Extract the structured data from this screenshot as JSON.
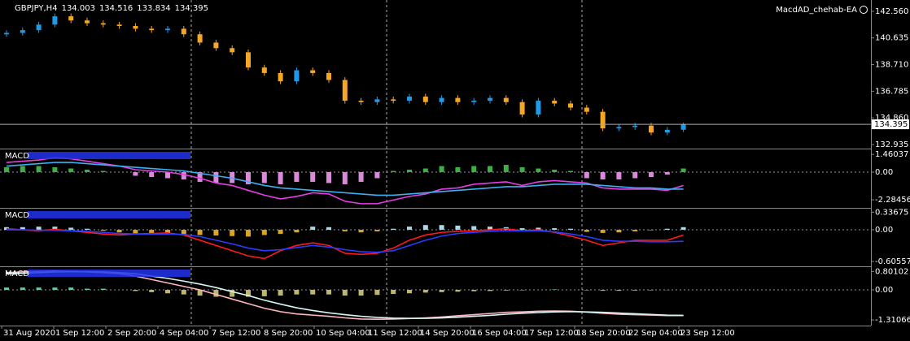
{
  "chart_data": [
    {
      "type": "candlestick",
      "title": "GBPJPY,H4",
      "expert": "MacdAD_chehab-EA",
      "up_color": "#1e9be8",
      "down_color": "#f5a623",
      "ylim": [
        132.7,
        143.26
      ],
      "yticks": [
        {
          "value": 142.56,
          "label": "142.560"
        },
        140.635,
        {
          "value": 138.71,
          "label": "138.710"
        },
        136.785,
        {
          "value": 134.86,
          "label": "134.860"
        },
        132.935
      ],
      "open": [
        140.9,
        141.0,
        141.2,
        141.6,
        142.2,
        141.9,
        141.7,
        141.6,
        141.5,
        141.3,
        141.2,
        141.3,
        140.9,
        140.3,
        139.9,
        139.6,
        138.5,
        138.1,
        137.5,
        138.3,
        138.1,
        137.6,
        136.1,
        136.0,
        136.2,
        136.1,
        136.4,
        136.0,
        136.3,
        136.0,
        136.1,
        136.3,
        136.0,
        135.1,
        136.1,
        135.9,
        135.6,
        135.3,
        134.1,
        134.2,
        134.3,
        133.8,
        134.003
      ],
      "high": [
        141.2,
        141.4,
        141.8,
        142.4,
        142.4,
        142.1,
        141.9,
        141.8,
        141.7,
        141.5,
        141.5,
        141.5,
        141.1,
        140.5,
        140.1,
        139.8,
        138.7,
        138.3,
        138.5,
        138.5,
        138.3,
        137.8,
        136.3,
        136.4,
        136.4,
        136.6,
        136.6,
        136.5,
        136.5,
        136.3,
        136.5,
        136.5,
        136.2,
        136.3,
        136.3,
        136.1,
        135.8,
        135.5,
        134.4,
        134.5,
        134.5,
        134.2,
        134.516
      ],
      "low": [
        140.7,
        140.8,
        141.0,
        141.4,
        141.7,
        141.5,
        141.4,
        141.3,
        141.1,
        141.0,
        141.0,
        140.7,
        140.1,
        139.7,
        139.4,
        138.3,
        137.9,
        137.3,
        137.3,
        137.9,
        137.4,
        135.9,
        135.8,
        135.8,
        135.9,
        135.9,
        135.8,
        135.8,
        135.8,
        135.8,
        135.9,
        135.8,
        134.9,
        134.9,
        135.7,
        135.4,
        135.1,
        133.9,
        133.9,
        134.0,
        133.6,
        133.6,
        133.834
      ],
      "close": [
        141.0,
        141.2,
        141.6,
        142.2,
        141.9,
        141.7,
        141.6,
        141.5,
        141.3,
        141.2,
        141.3,
        140.9,
        140.3,
        139.9,
        139.6,
        138.5,
        138.1,
        137.5,
        138.3,
        138.1,
        137.6,
        136.1,
        136.0,
        136.2,
        136.1,
        136.4,
        136.0,
        136.3,
        136.0,
        136.1,
        136.3,
        136.0,
        135.1,
        136.1,
        135.9,
        135.6,
        135.3,
        134.1,
        134.2,
        134.3,
        133.8,
        134.0,
        134.395
      ],
      "time_labels": [
        "31 Aug 2020",
        "1 Sep 12:00",
        "2 Sep 20:00",
        "4 Sep 04:00",
        "7 Sep 12:00",
        "8 Sep 20:00",
        "10 Sep 04:00",
        "11 Sep 12:00",
        "14 Sep 20:00",
        "16 Sep 04:00",
        "17 Sep 12:00",
        "18 Sep 20:00",
        "22 Sep 04:00",
        "23 Sep 12:00"
      ]
    },
    {
      "type": "macd",
      "title": "MACD",
      "ylim": [
        -2.876,
        1.873
      ],
      "yticks": [
        1.46037,
        {
          "value": 0,
          "label": "0.00"
        },
        -2.28456
      ],
      "histogram": {
        "positive_color": "#3cb043",
        "negative_color": "#d98ad9",
        "values": [
          0.4,
          0.5,
          0.5,
          0.4,
          0.3,
          0.2,
          0.1,
          0,
          -0.3,
          -0.4,
          -0.5,
          -0.6,
          -0.8,
          -0.9,
          -0.9,
          -1.0,
          -0.9,
          -1.0,
          -0.8,
          -0.8,
          -0.9,
          -1.0,
          -0.8,
          -0.5,
          0.1,
          0.2,
          0.3,
          0.5,
          0.4,
          0.5,
          0.5,
          0.6,
          0.4,
          0.3,
          0.2,
          0.1,
          -0.5,
          -0.6,
          -0.6,
          -0.5,
          -0.4,
          -0.2,
          0.3
        ]
      },
      "series": [
        {
          "color": "#e43ee4",
          "values": [
            0.8,
            0.9,
            1.0,
            1.2,
            1.1,
            0.9,
            0.7,
            0.5,
            0.2,
            0.1,
            0,
            -0.2,
            -0.5,
            -0.9,
            -1.1,
            -1.5,
            -1.9,
            -2.2,
            -2.0,
            -1.7,
            -1.8,
            -2.4,
            -2.6,
            -2.6,
            -2.3,
            -2.0,
            -1.8,
            -1.4,
            -1.3,
            -1.0,
            -0.9,
            -0.8,
            -1.1,
            -0.8,
            -0.7,
            -0.8,
            -0.9,
            -1.3,
            -1.4,
            -1.4,
            -1.4,
            -1.5,
            -1.1
          ]
        },
        {
          "color": "#3bb0f0",
          "values": [
            0.5,
            0.6,
            0.7,
            0.8,
            0.8,
            0.7,
            0.6,
            0.5,
            0.4,
            0.3,
            0.2,
            0.1,
            -0.1,
            -0.3,
            -0.5,
            -0.8,
            -1.1,
            -1.3,
            -1.4,
            -1.5,
            -1.6,
            -1.7,
            -1.8,
            -1.9,
            -1.9,
            -1.8,
            -1.7,
            -1.6,
            -1.5,
            -1.4,
            -1.3,
            -1.2,
            -1.2,
            -1.1,
            -1.0,
            -1.0,
            -1.0,
            -1.1,
            -1.2,
            -1.3,
            -1.3,
            -1.4,
            -1.4
          ]
        }
      ]
    },
    {
      "type": "macd",
      "title": "MACD",
      "ylim": [
        -0.683,
        0.404
      ],
      "yticks": [
        0.33675,
        {
          "value": 0,
          "label": "0.00"
        },
        -0.60557
      ],
      "histogram": {
        "positive_color": "#add8e6",
        "negative_color": "#daa520",
        "values": [
          0.05,
          0.05,
          0.06,
          0.06,
          0.04,
          0.02,
          -0.02,
          -0.05,
          -0.08,
          -0.08,
          -0.07,
          -0.09,
          -0.1,
          -0.11,
          -0.12,
          -0.13,
          -0.1,
          -0.08,
          -0.05,
          0.06,
          0.05,
          -0.03,
          -0.05,
          -0.03,
          0.02,
          0.06,
          0.09,
          0.09,
          0.08,
          0.07,
          0.06,
          0.05,
          0.03,
          0.04,
          0.03,
          0.02,
          -0.04,
          -0.06,
          -0.05,
          -0.03,
          -0.01,
          0.02,
          0.05
        ]
      },
      "series": [
        {
          "color": "#ff1a1a",
          "values": [
            0.02,
            0.0,
            -0.02,
            0.01,
            -0.02,
            -0.05,
            -0.08,
            -0.1,
            -0.08,
            -0.07,
            -0.06,
            -0.1,
            -0.2,
            -0.3,
            -0.4,
            -0.5,
            -0.55,
            -0.4,
            -0.3,
            -0.25,
            -0.3,
            -0.45,
            -0.47,
            -0.45,
            -0.35,
            -0.2,
            -0.1,
            -0.05,
            -0.03,
            -0.02,
            0.0,
            0.02,
            -0.02,
            0.0,
            -0.05,
            -0.12,
            -0.2,
            -0.3,
            -0.25,
            -0.2,
            -0.2,
            -0.2,
            -0.1
          ]
        },
        {
          "color": "#2a3cff",
          "values": [
            0.0,
            0.0,
            -0.01,
            -0.01,
            -0.02,
            -0.03,
            -0.05,
            -0.07,
            -0.08,
            -0.08,
            -0.08,
            -0.09,
            -0.13,
            -0.2,
            -0.27,
            -0.35,
            -0.4,
            -0.38,
            -0.34,
            -0.3,
            -0.33,
            -0.38,
            -0.42,
            -0.43,
            -0.4,
            -0.3,
            -0.2,
            -0.12,
            -0.07,
            -0.05,
            -0.03,
            -0.02,
            -0.02,
            -0.02,
            -0.04,
            -0.08,
            -0.13,
            -0.2,
            -0.22,
            -0.22,
            -0.23,
            -0.23,
            -0.22
          ]
        }
      ]
    },
    {
      "type": "macd",
      "title": "MACD",
      "ylim": [
        -1.52,
        0.99
      ],
      "yticks": [
        0.80102,
        {
          "value": 0,
          "label": "0.00"
        },
        -1.31066
      ],
      "histogram": {
        "positive_color": "#66cdaa",
        "negative_color": "#bdb76b",
        "values": [
          0.1,
          0.1,
          0.1,
          0.1,
          0.1,
          0.05,
          0.05,
          0,
          -0.05,
          -0.1,
          -0.15,
          -0.2,
          -0.25,
          -0.3,
          -0.3,
          -0.3,
          -0.28,
          -0.25,
          -0.2,
          -0.2,
          -0.2,
          -0.25,
          -0.25,
          -0.22,
          -0.18,
          -0.15,
          -0.12,
          -0.1,
          -0.08,
          -0.06,
          -0.05,
          -0.03,
          -0.02,
          0,
          0.02,
          0,
          -0.02,
          -0.04,
          -0.04,
          -0.03,
          -0.02,
          -0.01,
          0
        ]
      },
      "series": [
        {
          "color": "#ffb6c1",
          "values": [
            0.75,
            0.78,
            0.8,
            0.82,
            0.8,
            0.78,
            0.75,
            0.7,
            0.6,
            0.45,
            0.3,
            0.15,
            0,
            -0.2,
            -0.4,
            -0.6,
            -0.8,
            -0.95,
            -1.05,
            -1.1,
            -1.15,
            -1.22,
            -1.27,
            -1.28,
            -1.27,
            -1.25,
            -1.22,
            -1.18,
            -1.13,
            -1.08,
            -1.03,
            -0.98,
            -0.96,
            -0.93,
            -0.92,
            -0.93,
            -0.97,
            -1.02,
            -1.06,
            -1.08,
            -1.1,
            -1.12,
            -1.12
          ]
        },
        {
          "color": "#d8f4f4",
          "values": [
            0.7,
            0.72,
            0.75,
            0.78,
            0.79,
            0.79,
            0.78,
            0.75,
            0.7,
            0.6,
            0.5,
            0.38,
            0.25,
            0.1,
            -0.08,
            -0.25,
            -0.45,
            -0.62,
            -0.78,
            -0.9,
            -1.0,
            -1.08,
            -1.15,
            -1.2,
            -1.23,
            -1.24,
            -1.24,
            -1.22,
            -1.19,
            -1.15,
            -1.11,
            -1.06,
            -1.02,
            -0.99,
            -0.96,
            -0.95,
            -0.96,
            -0.98,
            -1.01,
            -1.04,
            -1.07,
            -1.1,
            -1.11
          ]
        }
      ]
    }
  ]
}
